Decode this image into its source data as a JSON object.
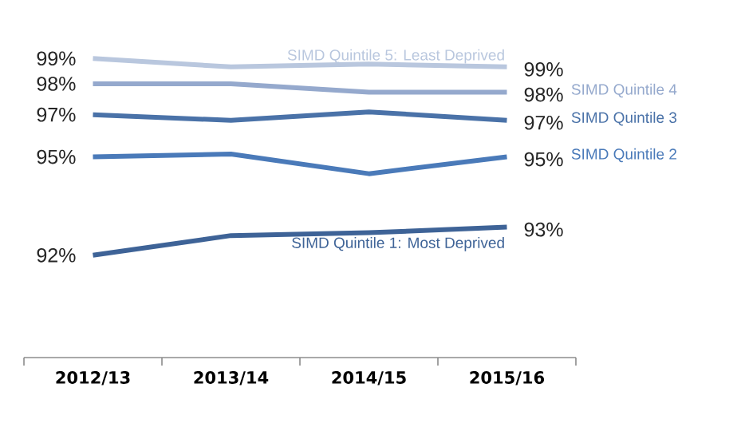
{
  "chart_data": {
    "type": "line",
    "categories": [
      "2012/13",
      "2013/14",
      "2014/15",
      "2015/16"
    ],
    "legend": false,
    "marker": "none",
    "line_style": "solid",
    "series": [
      {
        "name": "SIMD Quintile 5:  Least Deprived",
        "color": "#b9c7de",
        "values": [
          99.0,
          98.7,
          98.8,
          98.7
        ],
        "value_labels": [
          "99%",
          null,
          null,
          "99%"
        ]
      },
      {
        "name": "SIMD Quintile 4",
        "color": "#95a9cd",
        "values": [
          98.1,
          98.1,
          97.8,
          97.8
        ],
        "value_labels": [
          "98%",
          null,
          null,
          "98%"
        ]
      },
      {
        "name": "SIMD Quintile 3",
        "color": "#4a72a8",
        "values": [
          97.0,
          96.8,
          97.1,
          96.8
        ],
        "value_labels": [
          "97%",
          null,
          null,
          "97%"
        ]
      },
      {
        "name": "SIMD Quintile 2",
        "color": "#4a7ab9",
        "values": [
          95.5,
          95.6,
          94.9,
          95.5
        ],
        "value_labels": [
          "95%",
          null,
          null,
          "95%"
        ]
      },
      {
        "name": "SIMD Quintile 1:  Most Deprived",
        "color": "#3e6397",
        "values": [
          92.0,
          92.7,
          92.8,
          93.0
        ],
        "value_labels": [
          "92%",
          null,
          null,
          "93%"
        ]
      }
    ]
  }
}
